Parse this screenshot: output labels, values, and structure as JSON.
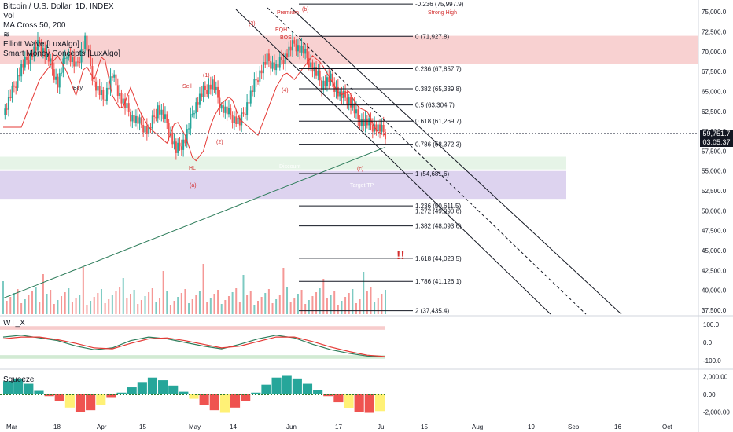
{
  "header": {
    "symbol_title": "Bitcoin / U.S. Dollar, 1D, INDEX",
    "indicators": [
      "Vol",
      "MA Cross 50, 200",
      "≋",
      "Elliott Wave [LuxAlgo]",
      "Smart Money Concepts [LuxAlgo]"
    ]
  },
  "last_price": {
    "value": "59,751.7",
    "countdown": "03:05:37"
  },
  "colors": {
    "up": "#26a69a",
    "down": "#ef5350",
    "fib": "#131722",
    "ma_fast": "#e53935",
    "ma_slow": "#2e7d5b",
    "premium": "#ef9a9a",
    "discount": "#b39ddb",
    "squeeze_yellow": "#fff176"
  },
  "chart_data": [
    {
      "type": "candlestick",
      "title": "Bitcoin / U.S. Dollar, 1D, INDEX",
      "y_axis": {
        "ticks": [
          75000,
          72500,
          70000,
          67500,
          65000,
          62500,
          60000,
          57500,
          55000,
          52500,
          50000,
          47500,
          45000,
          42500,
          40000,
          37500
        ],
        "tick_labels": [
          "75,000.0",
          "72,500.0",
          "70,000.0",
          "67,500.0",
          "65,000.0",
          "62,500.0",
          "60,000.0",
          "57,500.0",
          "55,000.0",
          "52,500.0",
          "50,000.0",
          "47,500.0",
          "45,000.0",
          "42,500.0",
          "40,000.0",
          "37,500.0"
        ],
        "ylim": [
          37000,
          76500
        ]
      },
      "x_axis": {
        "tick_labels": [
          "Mar",
          "18",
          "Apr",
          "15",
          "May",
          "14",
          "Jun",
          "17",
          "Jul",
          "15",
          "Aug",
          "19",
          "Sep",
          "16",
          "Oct"
        ]
      },
      "close_path": [
        [
          0,
          62000
        ],
        [
          10,
          68000
        ],
        [
          20,
          71000
        ],
        [
          25,
          69000
        ],
        [
          30,
          66000
        ],
        [
          35,
          70000
        ],
        [
          40,
          68000
        ],
        [
          45,
          71500
        ],
        [
          50,
          66000
        ],
        [
          55,
          64000
        ],
        [
          60,
          67000
        ],
        [
          65,
          64000
        ],
        [
          70,
          62000
        ],
        [
          80,
          60000
        ],
        [
          85,
          63000
        ],
        [
          90,
          61000
        ],
        [
          95,
          57500
        ],
        [
          100,
          59000
        ],
        [
          105,
          63000
        ],
        [
          110,
          65000
        ],
        [
          115,
          66000
        ],
        [
          120,
          63000
        ],
        [
          130,
          61000
        ],
        [
          135,
          64000
        ],
        [
          140,
          67000
        ],
        [
          145,
          69000
        ],
        [
          150,
          68000
        ],
        [
          155,
          69500
        ],
        [
          160,
          71000
        ],
        [
          165,
          70000
        ],
        [
          170,
          68000
        ],
        [
          175,
          66000
        ],
        [
          180,
          66500
        ],
        [
          185,
          64500
        ],
        [
          190,
          64000
        ],
        [
          195,
          61500
        ],
        [
          200,
          61000
        ],
        [
          205,
          60500
        ],
        [
          210,
          59750
        ]
      ],
      "fib_levels": [
        {
          "ratio": "-0.236",
          "price": "75,997.9",
          "value": 75997.9
        },
        {
          "ratio": "0",
          "price": "71,927.8",
          "value": 71927.8
        },
        {
          "ratio": "0.236",
          "price": "67,857.7",
          "value": 67857.7
        },
        {
          "ratio": "0.382",
          "price": "65,339.8",
          "value": 65339.8
        },
        {
          "ratio": "0.5",
          "price": "63,304.7",
          "value": 63304.7
        },
        {
          "ratio": "0.618",
          "price": "61,269.7",
          "value": 61269.7
        },
        {
          "ratio": "0.786",
          "price": "58,372.3",
          "value": 58372.3
        },
        {
          "ratio": "1",
          "price": "54,681.6",
          "value": 54681.6
        },
        {
          "ratio": "1.236",
          "price": "50,611.5",
          "value": 50611.5
        },
        {
          "ratio": "1.272",
          "price": "49,990.6",
          "value": 49990.6
        },
        {
          "ratio": "1.382",
          "price": "48,093.6",
          "value": 48093.6
        },
        {
          "ratio": "1.618",
          "price": "44,023.5",
          "value": 44023.5
        },
        {
          "ratio": "1.786",
          "price": "41,126.1",
          "value": 41126.1
        },
        {
          "ratio": "2",
          "price": "37,435.4",
          "value": 37435.4
        }
      ],
      "zones": [
        {
          "label": "Premium",
          "from": 68500,
          "to": 72000
        },
        {
          "label": "Discount",
          "from": 55200,
          "to": 56800
        },
        {
          "label": "Target TP",
          "from": 51500,
          "to": 55000
        }
      ],
      "annotations": [
        "Premium",
        "Strong High",
        "BOS",
        "EQH",
        "Discount",
        "Target TP",
        "Buy",
        "Sell",
        "HL",
        "(a)",
        "(b)",
        "(c)",
        "(1)",
        "(2)",
        "(3)",
        "(4)",
        "!!"
      ]
    },
    {
      "type": "line",
      "title": "WT_X",
      "ylim": [
        -130,
        130
      ],
      "y_ticks": [
        "100.0",
        "0.0",
        "-100.0"
      ],
      "series": [
        {
          "values": [
            30,
            40,
            25,
            10,
            -20,
            -40,
            -30,
            10,
            30,
            20,
            0,
            -20,
            -35,
            -10,
            20,
            40,
            25,
            -10,
            -40,
            -60,
            -75,
            -80
          ]
        },
        {
          "values": [
            20,
            30,
            30,
            15,
            -5,
            -30,
            -35,
            -5,
            20,
            25,
            10,
            -10,
            -30,
            -20,
            5,
            30,
            30,
            5,
            -25,
            -50,
            -70,
            -78
          ]
        }
      ]
    },
    {
      "type": "bar",
      "title": "Squeeze",
      "ylim": [
        -2500,
        2500
      ],
      "y_ticks": [
        "2,000.00",
        "0.00",
        "-2,000.00"
      ],
      "values": [
        1500,
        1800,
        1200,
        400,
        -200,
        -800,
        -1500,
        -2000,
        -1800,
        -1200,
        -400,
        200,
        800,
        1400,
        1900,
        1600,
        1000,
        300,
        -500,
        -1200,
        -1800,
        -2100,
        -1500,
        -800,
        200,
        1100,
        1900,
        2100,
        1800,
        1200,
        500,
        -200,
        -900,
        -1600,
        -2000,
        -2100,
        -1900
      ]
    }
  ]
}
